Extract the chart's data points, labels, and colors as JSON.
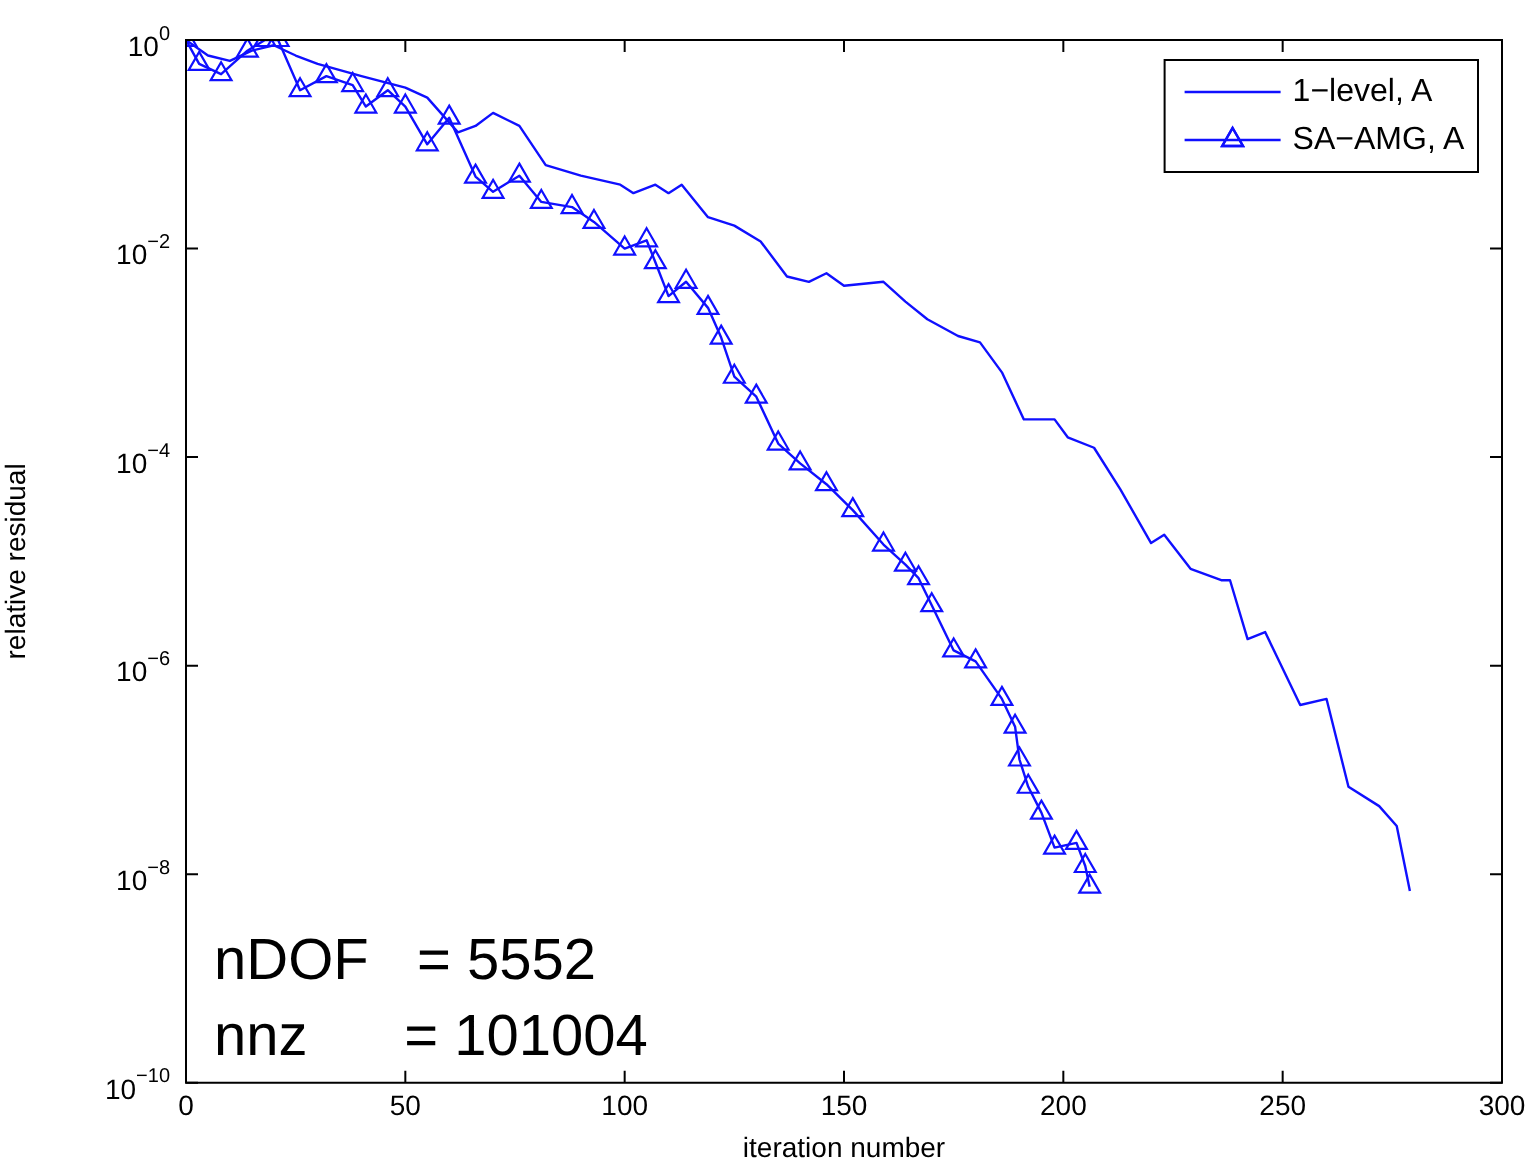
{
  "chart_data": {
    "type": "line",
    "xlabel": "iteration number",
    "ylabel": "relative residual",
    "log": "y",
    "grid": false,
    "legend": "top right",
    "xlim": [
      0,
      300
    ],
    "xticks": [
      0,
      50,
      100,
      150,
      200,
      250,
      300
    ],
    "ylim": [
      1e-10,
      1
    ],
    "yticks": [
      {
        "value": 1e-10,
        "label": "10$^{−10}$"
      },
      {
        "value": 1e-08,
        "label": "10$^{−8}$"
      },
      {
        "value": 1e-06,
        "label": "10$^{−6}$"
      },
      {
        "value": 0.0001,
        "label": "10$^{−4}$"
      },
      {
        "value": 0.01,
        "label": "10$^{−2}$"
      },
      {
        "value": 1,
        "label": "10$^{0}$"
      }
    ],
    "annotations": [
      "nDOF   = 5552",
      "nnz      = 101004"
    ],
    "series": [
      {
        "name": "1−level, A",
        "color": "#1010ff",
        "marker": "none",
        "line_style": "solid",
        "x": [
          0,
          5,
          10,
          15,
          20,
          25,
          30,
          40,
          50,
          55,
          62,
          66,
          70,
          76,
          82,
          90,
          99,
          102,
          107,
          110,
          113,
          119,
          125,
          131,
          137,
          142,
          146,
          150,
          159,
          164,
          169,
          176,
          181,
          186,
          191,
          198,
          201,
          207,
          213,
          220,
          223,
          229,
          236,
          238,
          242,
          246,
          254,
          260,
          265,
          272,
          276,
          279
        ],
        "values": [
          1,
          0.71,
          0.63,
          0.79,
          0.89,
          0.71,
          0.59,
          0.45,
          0.35,
          0.28,
          0.13,
          0.15,
          0.2,
          0.15,
          0.063,
          0.05,
          0.041,
          0.034,
          0.041,
          0.034,
          0.041,
          0.02,
          0.0166,
          0.0117,
          0.0054,
          0.0048,
          0.0058,
          0.0044,
          0.0048,
          0.0031,
          0.0021,
          0.00145,
          0.00126,
          0.00065,
          0.00023,
          0.00023,
          0.000155,
          0.000123,
          4.9e-05,
          1.5e-05,
          1.8e-05,
          8.5e-06,
          6.6e-06,
          6.6e-06,
          1.8e-06,
          2.1e-06,
          4.2e-07,
          4.8e-07,
          6.9e-08,
          4.5e-08,
          2.9e-08,
          6.9e-09
        ]
      },
      {
        "name": "SA−AMG, A",
        "color": "#1010ff",
        "marker": "triangle",
        "line_style": "solid",
        "x": [
          0,
          3,
          8,
          14,
          18,
          21,
          26,
          32,
          38,
          41,
          46,
          50,
          55,
          60,
          66,
          70,
          76,
          81,
          88,
          93,
          100,
          105,
          107,
          110,
          114,
          119,
          122,
          125,
          130,
          135,
          140,
          146,
          152,
          159,
          164,
          167,
          170,
          175,
          180,
          186,
          189,
          190,
          192,
          195,
          198,
          203,
          205,
          206
        ],
        "values": [
          1,
          0.59,
          0.47,
          0.79,
          1,
          1,
          0.33,
          0.45,
          0.37,
          0.23,
          0.33,
          0.23,
          0.1,
          0.18,
          0.049,
          0.035,
          0.05,
          0.028,
          0.025,
          0.018,
          0.01,
          0.012,
          0.0074,
          0.0035,
          0.0048,
          0.0027,
          0.0014,
          0.00059,
          0.00038,
          0.000135,
          8.7e-05,
          5.5e-05,
          3.1e-05,
          1.45e-05,
          9.3e-06,
          6.9e-06,
          3.8e-06,
          1.4e-06,
          1.1e-06,
          4.8e-07,
          2.6e-07,
          1.26e-07,
          6.9e-08,
          3.9e-08,
          1.8e-08,
          2e-08,
          1.2e-08,
          7.6e-09
        ]
      }
    ]
  }
}
